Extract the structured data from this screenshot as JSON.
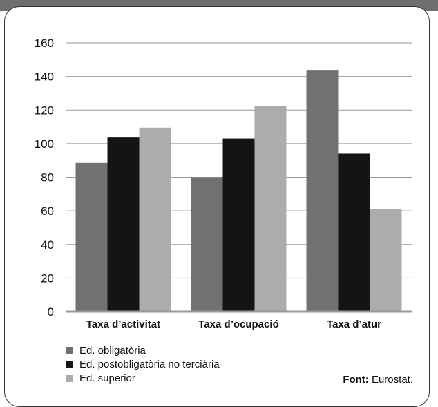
{
  "chart_data": {
    "type": "bar",
    "categories": [
      "Taxa d’activitat",
      "Taxa d’ocupació",
      "Taxa d’atur"
    ],
    "series": [
      {
        "name": "Ed. obligatòria",
        "color": "#717171",
        "values": [
          88.5,
          80,
          143.5
        ]
      },
      {
        "name": "Ed. postobligatòria no terciària",
        "color": "#141414",
        "values": [
          104,
          103,
          94
        ]
      },
      {
        "name": "Ed. superior",
        "color": "#acacac",
        "values": [
          109.5,
          122.5,
          61
        ]
      }
    ],
    "ylim": [
      0,
      160
    ],
    "yticks": [
      0,
      20,
      40,
      60,
      80,
      100,
      120,
      140,
      160
    ],
    "grid": true,
    "legend_position": "bottom-left",
    "title": "",
    "xlabel": "",
    "ylabel": ""
  },
  "source": {
    "label": "Font:",
    "text": " Eurostat."
  }
}
